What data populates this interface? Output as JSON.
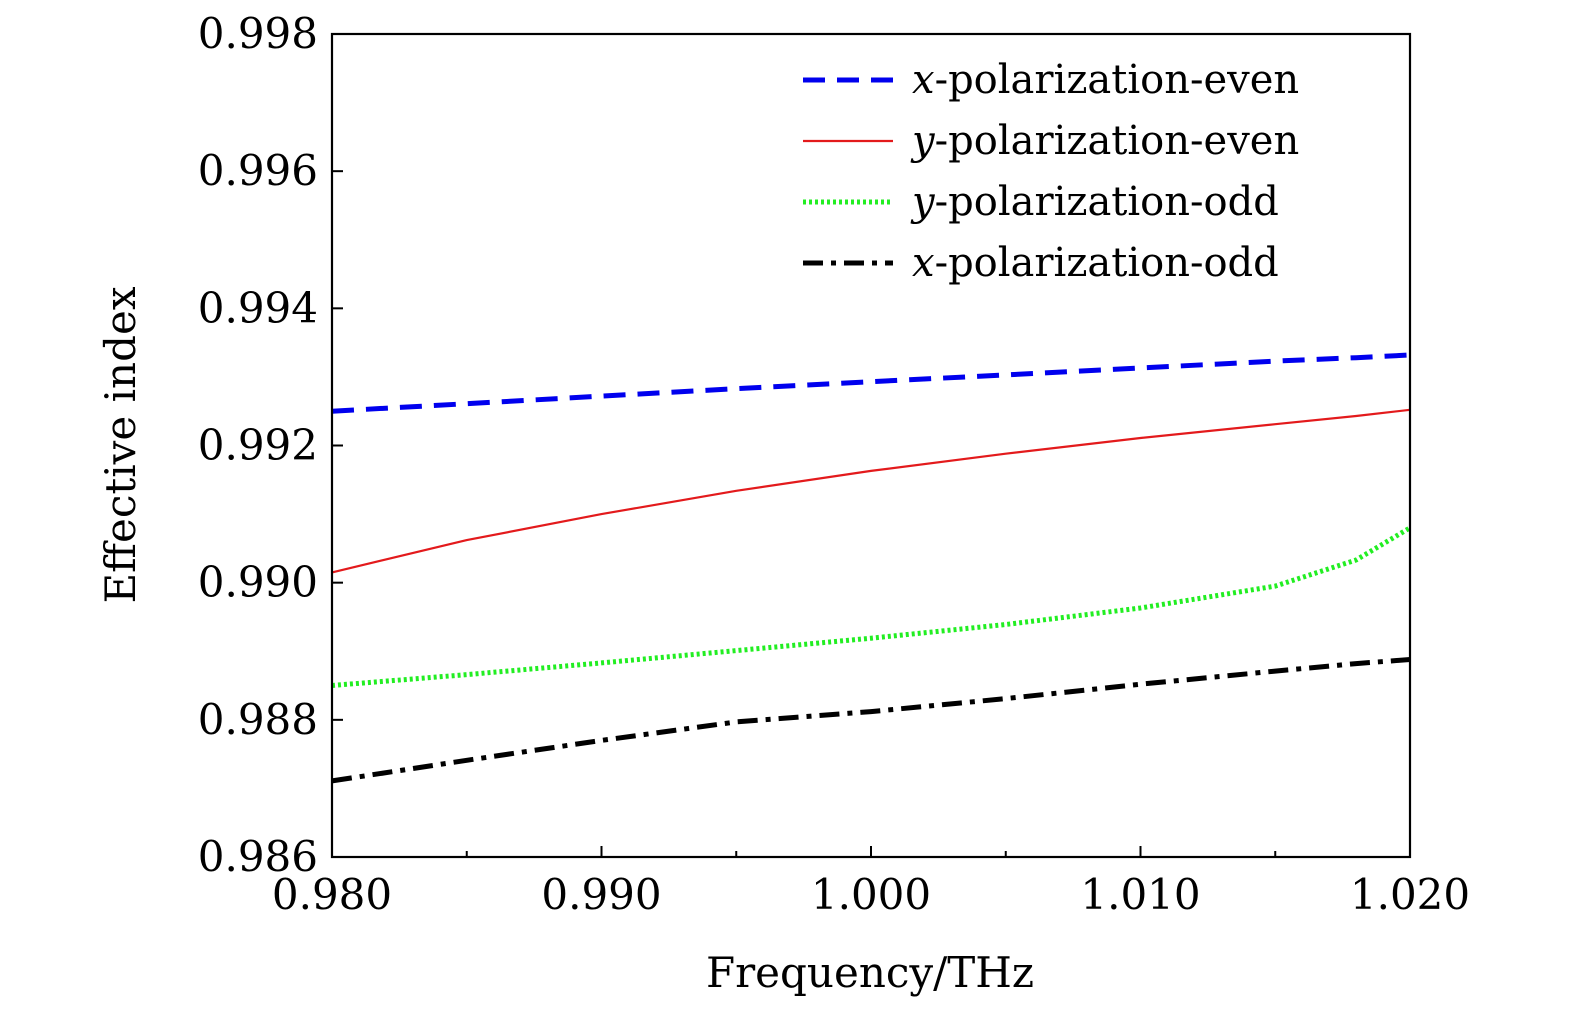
{
  "chart_data": {
    "type": "line",
    "title": "",
    "xlabel": "Frequency/THz",
    "ylabel": "Effective index",
    "xlim": [
      0.98,
      1.02
    ],
    "ylim": [
      0.986,
      0.998
    ],
    "x_ticks": [
      0.98,
      0.99,
      1.0,
      1.01,
      1.02
    ],
    "x_tick_labels": [
      "0.980",
      "0.990",
      "1.000",
      "1.010",
      "1.020"
    ],
    "y_ticks": [
      0.986,
      0.988,
      0.99,
      0.992,
      0.994,
      0.996,
      0.998
    ],
    "y_tick_labels": [
      "0.986",
      "0.988",
      "0.990",
      "0.992",
      "0.994",
      "0.996",
      "0.998"
    ],
    "grid": false,
    "legend_position": "top-right",
    "x": [
      0.98,
      0.985,
      0.99,
      0.995,
      1.0,
      1.005,
      1.01,
      1.015,
      1.018,
      1.02
    ],
    "series": [
      {
        "name": "x-polarization-even",
        "name_italic": "x",
        "name_rest": "-polarization-even",
        "color": "#0000ee",
        "style": "dashed",
        "values": [
          0.9925,
          0.99261,
          0.99272,
          0.99283,
          0.99293,
          0.99303,
          0.99313,
          0.99323,
          0.99328,
          0.99332
        ]
      },
      {
        "name": "y-polarization-even",
        "name_italic": "y",
        "name_rest": "-polarization-even",
        "color": "#e31a1c",
        "style": "solid",
        "values": [
          0.99015,
          0.99062,
          0.991,
          0.99134,
          0.99163,
          0.99188,
          0.99211,
          0.99231,
          0.99243,
          0.99252
        ]
      },
      {
        "name": "y-polarization-odd",
        "name_italic": "y",
        "name_rest": "-polarization-odd",
        "color": "#22ee22",
        "style": "dotted",
        "values": [
          0.9885,
          0.98866,
          0.98883,
          0.98901,
          0.98919,
          0.98939,
          0.98963,
          0.98995,
          0.99033,
          0.9908
        ]
      },
      {
        "name": "x-polarization-odd",
        "name_italic": "x",
        "name_rest": "-polarization-odd",
        "color": "#000000",
        "style": "dashdot",
        "values": [
          0.98711,
          0.98741,
          0.9877,
          0.98797,
          0.98812,
          0.98831,
          0.98852,
          0.98871,
          0.98882,
          0.98888
        ]
      }
    ]
  }
}
